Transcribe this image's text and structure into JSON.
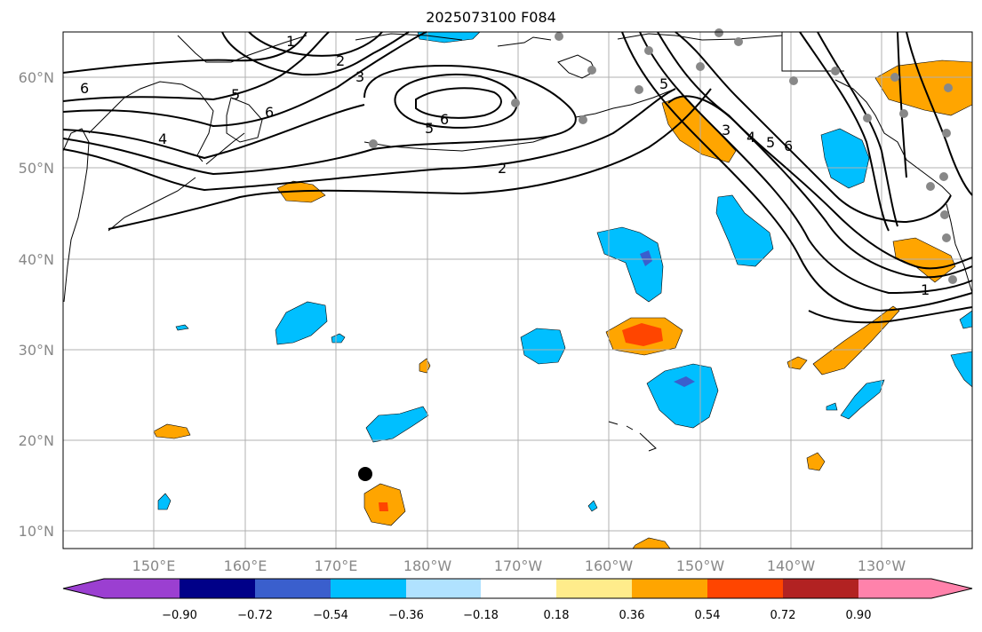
{
  "title": "2025073100 F084",
  "map": {
    "lon_labels": [
      "150°E",
      "160°E",
      "170°E",
      "180°W",
      "170°W",
      "160°W",
      "150°W",
      "140°W",
      "130°W"
    ],
    "lat_labels": [
      "60°N",
      "50°N",
      "40°N",
      "30°N",
      "20°N",
      "10°N"
    ],
    "contour_labels": [
      "1",
      "2",
      "3",
      "5",
      "6",
      "6",
      "5",
      "6",
      "4",
      "2",
      "5",
      "3",
      "4",
      "5",
      "6",
      "1"
    ],
    "gridlines": true
  },
  "colorbar": {
    "tick_labels": [
      "−0.90",
      "−0.72",
      "−0.54",
      "−0.36",
      "−0.18",
      "0.18",
      "0.36",
      "0.54",
      "0.72",
      "0.90"
    ],
    "colors": {
      "under": "#9b3fd1",
      "c1": "#000088",
      "c2": "#3a5fcd",
      "c3": "#00bfff",
      "c4": "#b0e2ff",
      "c5": "#ffffff",
      "c6": "#ffec8b",
      "c7": "#ffa500",
      "c8": "#ff4500",
      "c9": "#b22222",
      "over": "#ff82ab"
    }
  },
  "colors": {
    "neg": "#00bfff",
    "neg_strong": "#3a5fcd",
    "pos": "#ffa500",
    "pos_strong": "#ff4500",
    "station": "#888888",
    "grid": "#b0b0b0"
  }
}
